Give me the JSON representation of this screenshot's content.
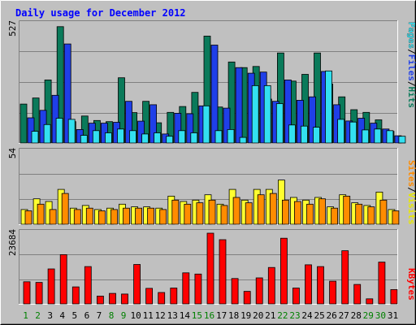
{
  "chart_data": [
    {
      "type": "bar",
      "title": "Daily usage for December 2012",
      "ymax_label": "527",
      "ylim": [
        0,
        527
      ],
      "categories": [
        "1",
        "2",
        "3",
        "4",
        "5",
        "6",
        "7",
        "8",
        "9",
        "10",
        "11",
        "12",
        "13",
        "14",
        "15",
        "16",
        "17",
        "18",
        "19",
        "20",
        "21",
        "22",
        "23",
        "24",
        "25",
        "26",
        "27",
        "28",
        "29",
        "30",
        "31"
      ],
      "weekend_days": [
        "1",
        "8",
        "15",
        "22",
        "29"
      ],
      "highlight_days": [
        "2",
        "9",
        "16",
        "23",
        "30"
      ],
      "series": [
        {
          "name": "Hits",
          "color": "#0a7a5a",
          "values": [
            173,
            200,
            280,
            517,
            95,
            120,
            100,
            95,
            290,
            135,
            185,
            90,
            136,
            162,
            225,
            475,
            160,
            360,
            335,
            340,
            195,
            400,
            275,
            305,
            400,
            262,
            205,
            148,
            136,
            103,
            52
          ]
        },
        {
          "name": "Files",
          "color": "#1f3fe8",
          "values": [
            112,
            145,
            212,
            440,
            60,
            88,
            88,
            92,
            185,
            97,
            170,
            40,
            132,
            130,
            165,
            435,
            155,
            335,
            310,
            315,
            185,
            280,
            190,
            205,
            318,
            170,
            98,
            110,
            88,
            62,
            32
          ]
        },
        {
          "name": "Pages",
          "color": "#33e0f0",
          "values": [
            52,
            82,
            110,
            105,
            34,
            55,
            45,
            62,
            55,
            40,
            45,
            30,
            55,
            45,
            165,
            55,
            60,
            25,
            255,
            255,
            175,
            80,
            75,
            70,
            320,
            105,
            93,
            58,
            62,
            55,
            30
          ]
        }
      ]
    },
    {
      "type": "bar",
      "ymax_label": "54",
      "ylim": [
        0,
        54
      ],
      "categories": [
        "1",
        "2",
        "3",
        "4",
        "5",
        "6",
        "7",
        "8",
        "9",
        "10",
        "11",
        "12",
        "13",
        "14",
        "15",
        "16",
        "17",
        "18",
        "19",
        "20",
        "21",
        "22",
        "23",
        "24",
        "25",
        "26",
        "27",
        "28",
        "29",
        "30",
        "31"
      ],
      "series": [
        {
          "name": "Visits",
          "color": "#ffff30",
          "values": [
            11,
            19,
            17,
            26,
            12,
            14,
            11,
            12,
            15,
            13,
            13,
            12,
            21,
            17,
            18,
            22,
            15,
            26,
            18,
            26,
            26,
            33,
            20,
            18,
            20,
            13,
            22,
            16,
            14,
            24,
            11
          ]
        },
        {
          "name": "Sites",
          "color": "#ff8c00",
          "values": [
            10,
            15,
            11,
            23,
            11,
            12,
            10,
            11,
            12,
            12,
            12,
            11,
            18,
            15,
            16,
            18,
            14,
            20,
            16,
            22,
            23,
            18,
            17,
            15,
            19,
            12,
            21,
            15,
            13,
            18,
            10
          ]
        }
      ]
    },
    {
      "type": "bar",
      "ymax_label": "23684",
      "ylim": [
        0,
        23684
      ],
      "categories": [
        "1",
        "2",
        "3",
        "4",
        "5",
        "6",
        "7",
        "8",
        "9",
        "10",
        "11",
        "12",
        "13",
        "14",
        "15",
        "16",
        "17",
        "18",
        "19",
        "20",
        "21",
        "22",
        "23",
        "24",
        "25",
        "26",
        "27",
        "28",
        "29",
        "30",
        "31"
      ],
      "series": [
        {
          "name": "KBytes",
          "color": "#ff0000",
          "values": [
            7400,
            7200,
            11700,
            16500,
            5700,
            12500,
            2600,
            3500,
            3300,
            13200,
            5200,
            3800,
            5300,
            10400,
            10000,
            23684,
            21500,
            8500,
            4200,
            8700,
            12200,
            22000,
            5300,
            13100,
            12500,
            7600,
            17800,
            6500,
            1700,
            14000,
            4800
          ]
        }
      ]
    }
  ]
}
